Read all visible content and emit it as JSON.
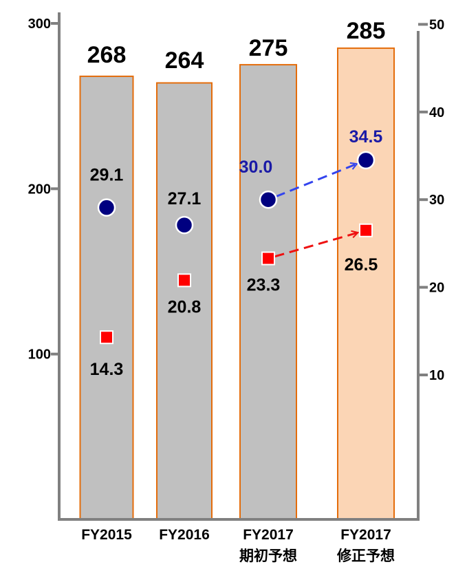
{
  "chart_data": {
    "type": "bar",
    "categories": [
      "FY2015",
      "FY2016",
      "FY2017",
      "FY2017"
    ],
    "category_sublabels": [
      "",
      "",
      "期初予想",
      "修正予想"
    ],
    "bar_values": [
      268,
      264,
      275,
      285
    ],
    "bar_labels": [
      "268",
      "264",
      "275",
      "285"
    ],
    "bar_colors": [
      "#c0c0c0",
      "#c0c0c0",
      "#c0c0c0",
      "#fbd5b5"
    ],
    "bar_border_color": "#e46c0a",
    "y_left": {
      "ticks": [
        100,
        200,
        300
      ],
      "tick_labels": [
        "100",
        "200",
        "300"
      ],
      "range": [
        0,
        300
      ]
    },
    "y_right": {
      "ticks": [
        10,
        20,
        30,
        40,
        50
      ],
      "tick_labels": [
        "10",
        "20",
        "30",
        "40",
        "50"
      ],
      "range": [
        -2,
        52
      ]
    },
    "series": [
      {
        "marker": "circle",
        "color": "#000080",
        "values": [
          29.1,
          27.1,
          30.0,
          34.5
        ],
        "labels": [
          "29.1",
          "27.1",
          "30.0",
          "34.5"
        ],
        "label_colors": [
          "#000000",
          "#000000",
          "#1a1aa6",
          "#1a1aa6"
        ]
      },
      {
        "marker": "square",
        "color": "#ff0000",
        "values": [
          14.3,
          20.8,
          23.3,
          26.5
        ],
        "labels": [
          "14.3",
          "20.8",
          "23.3",
          "26.5"
        ],
        "label_colors": [
          "#000000",
          "#000000",
          "#000000",
          "#000000"
        ]
      }
    ],
    "arrows": [
      {
        "series": 0,
        "from": 2,
        "to": 3,
        "color": "#3344ee",
        "style": "dashed"
      },
      {
        "series": 1,
        "from": 2,
        "to": 3,
        "color": "#ee1111",
        "style": "dashed"
      }
    ],
    "grid": false
  }
}
